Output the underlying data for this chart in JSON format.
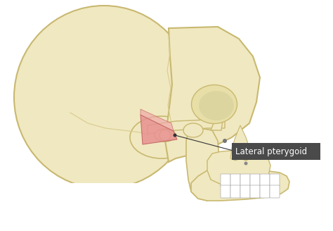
{
  "background_color": "#ffffff",
  "skull_color": "#f0e8c0",
  "skull_outline": "#c8b870",
  "skull_shadow": "#d8cc90",
  "muscle_color": "#e89090",
  "muscle_outline": "#c06060",
  "label_box_color": "#4a4a4a",
  "label_text_color": "#ffffff",
  "label_text": "Lateral pterygoid",
  "line_color": "#333333",
  "line_width": 0.8,
  "label_fontsize": 8.5,
  "figsize": [
    4.74,
    3.28
  ],
  "dpi": 100,
  "tooth_color": "#ffffff",
  "tooth_outline": "#bbbbbb"
}
